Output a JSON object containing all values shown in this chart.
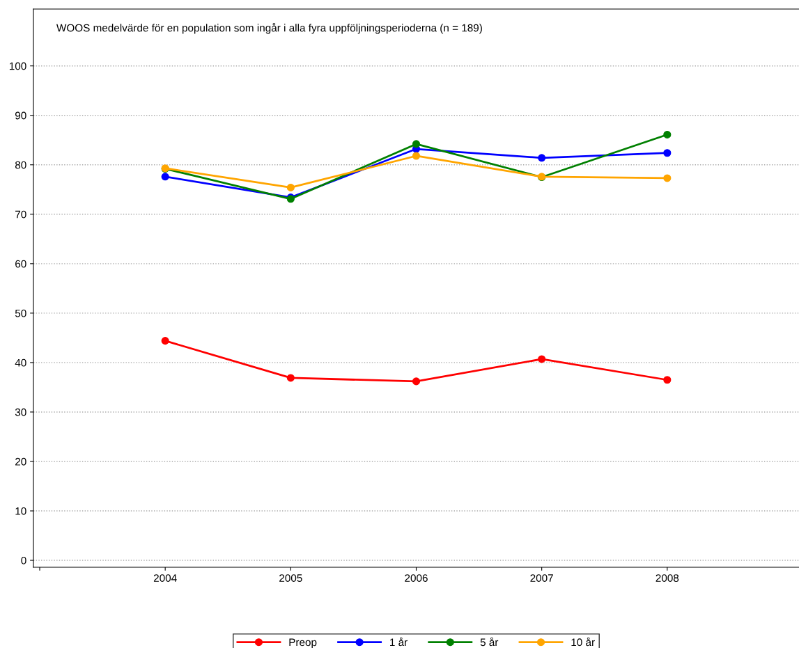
{
  "chart_data": {
    "type": "line",
    "title": "WOOS medelvärde för en population som ingår i alla fyra uppföljningsperioderna (n = 189)",
    "categories": [
      "2004",
      "2005",
      "2006",
      "2007",
      "2008"
    ],
    "series": [
      {
        "name": "Preop",
        "color": "#ff0000",
        "values": [
          44.4,
          36.9,
          36.2,
          40.7,
          36.5
        ]
      },
      {
        "name": "1 år",
        "color": "#0000ff",
        "values": [
          77.6,
          73.4,
          83.2,
          81.4,
          82.4
        ]
      },
      {
        "name": "5 år",
        "color": "#008000",
        "values": [
          79.2,
          73.1,
          84.2,
          77.5,
          86.1
        ]
      },
      {
        "name": "10 år",
        "color": "#ffa500",
        "values": [
          79.3,
          75.4,
          81.8,
          77.6,
          77.3
        ]
      }
    ],
    "ylim": [
      -1.4,
      111.5
    ],
    "yticks": [
      0,
      10,
      20,
      30,
      40,
      50,
      60,
      70,
      80,
      90,
      100
    ],
    "grid": "y",
    "legend": "bottom",
    "marker": "circle",
    "line_style": "solid"
  }
}
